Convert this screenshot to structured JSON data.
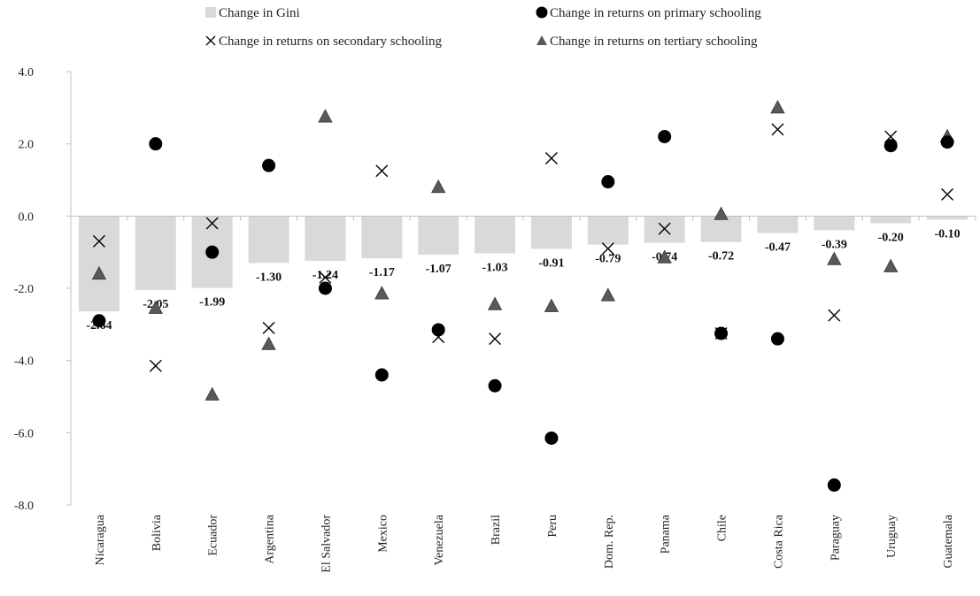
{
  "chart_data": {
    "type": "bar",
    "categories": [
      "Nicaragua",
      "Bolivia",
      "Ecuador",
      "Argentina",
      "El Salvador",
      "Mexico",
      "Venezuela",
      "Brazil",
      "Peru",
      "Dom. Rep.",
      "Panama",
      "Chile",
      "Costa Rica",
      "Paraguay",
      "Uruguay",
      "Guatemala"
    ],
    "ylim": [
      -8,
      4
    ],
    "yticks": [
      "4.0",
      "2.0",
      "0.0",
      "-2.0",
      "-4.0",
      "-6.0",
      "-8.0"
    ],
    "ytick_values": [
      4,
      2,
      0,
      -2,
      -4,
      -6,
      -8
    ],
    "legend_position": "top",
    "series": [
      {
        "name": "Change in Gini",
        "kind": "bar",
        "color": "#d9d9d9",
        "values": [
          -2.64,
          -2.05,
          -1.99,
          -1.3,
          -1.24,
          -1.17,
          -1.07,
          -1.03,
          -0.91,
          -0.79,
          -0.74,
          -0.72,
          -0.47,
          -0.39,
          -0.2,
          -0.1
        ],
        "labels": [
          "-2.64",
          "-2.05",
          "-1.99",
          "-1.30",
          "-1.24",
          "-1.17",
          "-1.07",
          "-1.03",
          "-0.91",
          "-0.79",
          "-0.74",
          "-0.72",
          "-0.47",
          "-0.39",
          "-0.20",
          "-0.10"
        ]
      },
      {
        "name": "Change in returns on primary schooling",
        "kind": "circle",
        "color": "#000000",
        "values": [
          -2.9,
          2.0,
          -1.0,
          1.4,
          -2.0,
          -4.4,
          -3.15,
          -4.7,
          -6.15,
          0.95,
          2.2,
          -3.25,
          -3.4,
          -7.45,
          1.95,
          2.05
        ]
      },
      {
        "name": "Change in returns on secondary schooling",
        "kind": "x",
        "color": "#000000",
        "values": [
          -0.7,
          -4.15,
          -0.2,
          -3.1,
          -1.7,
          1.25,
          -3.35,
          -3.4,
          1.6,
          -0.9,
          -0.35,
          -3.25,
          2.4,
          -2.75,
          2.2,
          0.6
        ]
      },
      {
        "name": "Change in returns on tertiary schooling",
        "kind": "triangle",
        "color": "#595959",
        "values": [
          -1.6,
          -2.55,
          -4.95,
          -3.55,
          2.75,
          -2.15,
          0.8,
          -2.45,
          -2.5,
          -2.2,
          -1.15,
          0.05,
          3.0,
          -1.2,
          -1.4,
          2.2
        ]
      }
    ]
  }
}
